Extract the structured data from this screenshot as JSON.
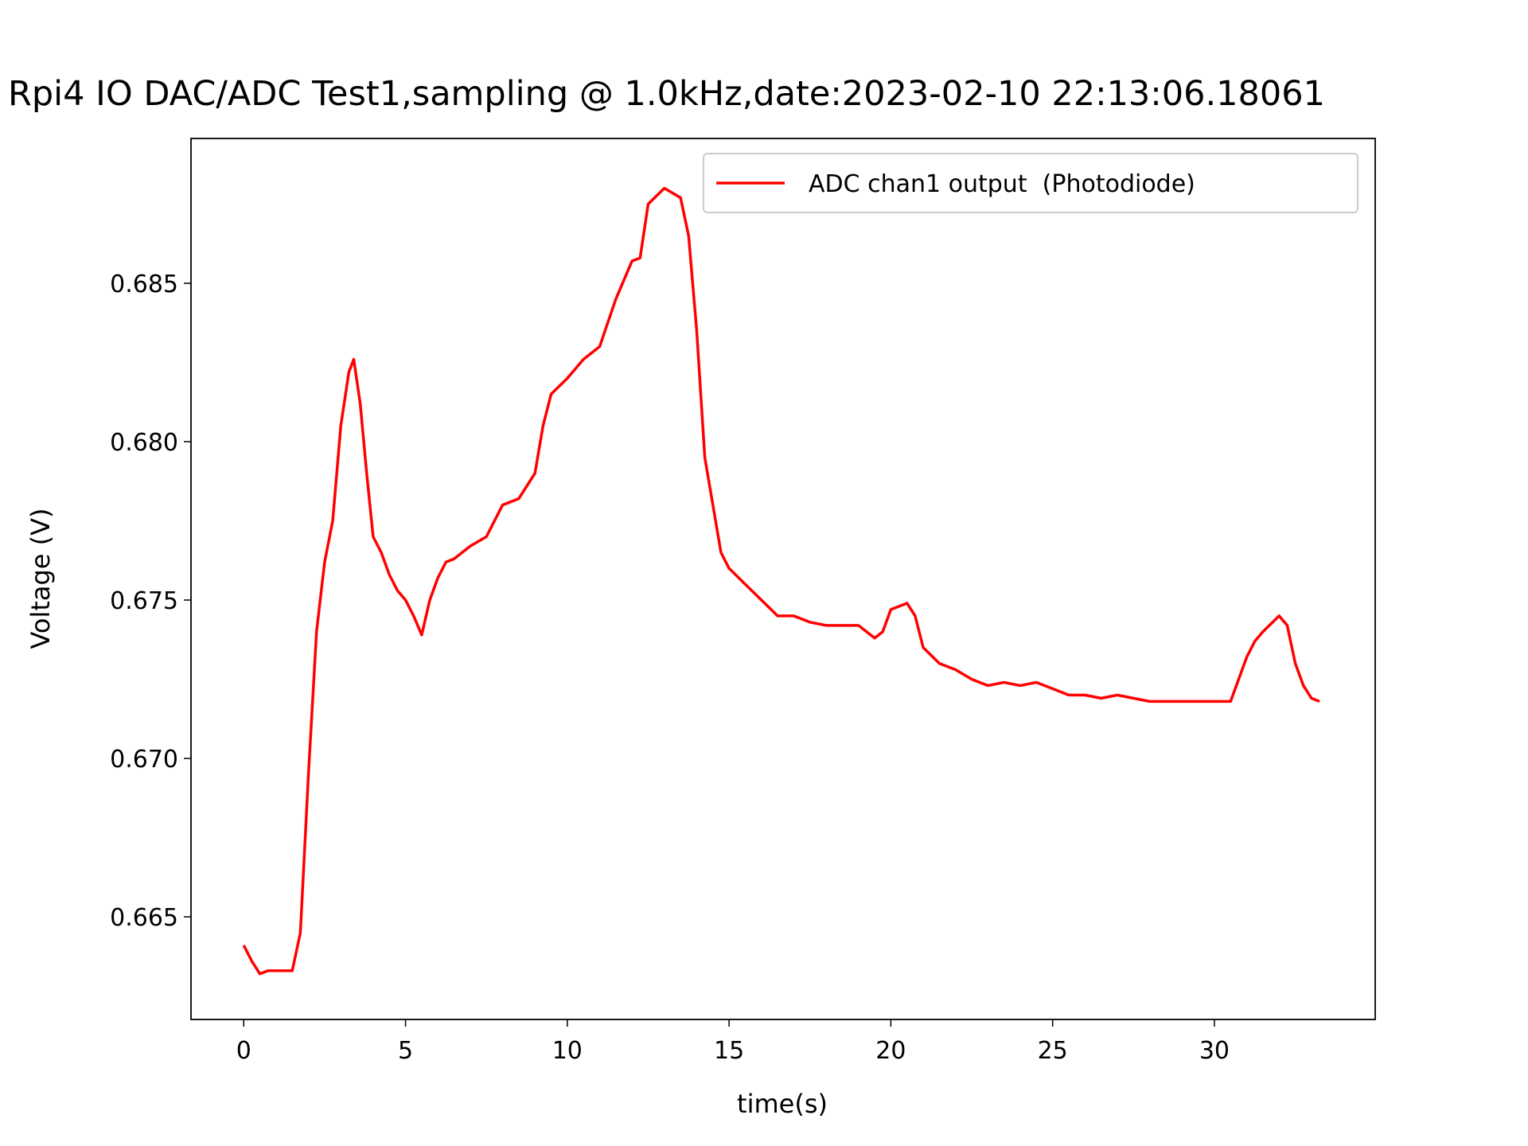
{
  "chart_data": {
    "type": "line",
    "title": "Rpi4 IO DAC/ADC Test1,sampling @ 1.0kHz,date:2023-02-10 22:13:06.18061",
    "x_label": "time(s)",
    "y_label": "Voltage (V)",
    "x": [
      0,
      0.25,
      0.5,
      0.75,
      1.0,
      1.25,
      1.5,
      1.75,
      2.0,
      2.25,
      2.5,
      2.75,
      3.0,
      3.25,
      3.4,
      3.6,
      3.8,
      4.0,
      4.25,
      4.5,
      4.75,
      5.0,
      5.25,
      5.5,
      5.75,
      6.0,
      6.25,
      6.5,
      7.0,
      7.5,
      8.0,
      8.5,
      9.0,
      9.25,
      9.5,
      10.0,
      10.5,
      11.0,
      11.5,
      12.0,
      12.25,
      12.5,
      13.0,
      13.5,
      13.75,
      14.0,
      14.25,
      14.5,
      14.75,
      15.0,
      15.5,
      16.0,
      16.5,
      17.0,
      17.5,
      18.0,
      18.5,
      19.0,
      19.5,
      19.75,
      20.0,
      20.5,
      20.75,
      21.0,
      21.5,
      22.0,
      22.5,
      23.0,
      23.5,
      24.0,
      24.5,
      25.0,
      25.5,
      26.0,
      26.5,
      27.0,
      27.5,
      28.0,
      28.5,
      29.0,
      29.5,
      30.0,
      30.5,
      31.0,
      31.25,
      31.5,
      32.0,
      32.25,
      32.5,
      32.75,
      33.0,
      33.25
    ],
    "series": [
      {
        "name": "ADC chan1 output  (Photodiode)",
        "color": "#ff0000",
        "values": [
          0.6641,
          0.6636,
          0.6632,
          0.6633,
          0.6633,
          0.6633,
          0.6633,
          0.6645,
          0.6695,
          0.674,
          0.6762,
          0.6775,
          0.6805,
          0.6822,
          0.6826,
          0.6812,
          0.679,
          0.677,
          0.6765,
          0.6758,
          0.6753,
          0.675,
          0.6745,
          0.6739,
          0.675,
          0.6757,
          0.6762,
          0.6763,
          0.6767,
          0.677,
          0.678,
          0.6782,
          0.679,
          0.6805,
          0.6815,
          0.682,
          0.6826,
          0.683,
          0.6845,
          0.6857,
          0.6858,
          0.6875,
          0.688,
          0.6877,
          0.6865,
          0.6835,
          0.6795,
          0.678,
          0.6765,
          0.676,
          0.6755,
          0.675,
          0.6745,
          0.6745,
          0.6743,
          0.6742,
          0.6742,
          0.6742,
          0.6738,
          0.674,
          0.6747,
          0.6749,
          0.6745,
          0.6735,
          0.673,
          0.6728,
          0.6725,
          0.6723,
          0.6724,
          0.6723,
          0.6724,
          0.6722,
          0.672,
          0.672,
          0.6719,
          0.672,
          0.6719,
          0.6718,
          0.6718,
          0.6718,
          0.6718,
          0.6718,
          0.6718,
          0.6732,
          0.6737,
          0.674,
          0.6745,
          0.6742,
          0.673,
          0.6723,
          0.6719,
          0.6718
        ]
      }
    ],
    "xlim": [
      -1.63,
      34.97
    ],
    "ylim": [
      0.66176,
      0.68957
    ],
    "xticks": [
      0,
      5,
      10,
      15,
      20,
      25,
      30
    ],
    "yticks": [
      {
        "value": 0.665,
        "label": "0.665"
      },
      {
        "value": 0.67,
        "label": "0.670"
      },
      {
        "value": 0.675,
        "label": "0.675"
      },
      {
        "value": 0.68,
        "label": "0.680"
      },
      {
        "value": 0.685,
        "label": "0.685"
      }
    ],
    "legend": "upper right"
  }
}
